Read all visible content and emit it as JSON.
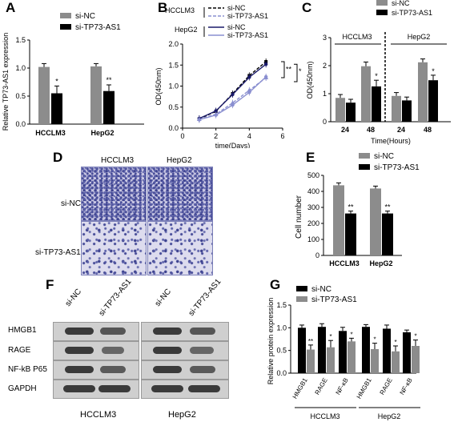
{
  "panels": {
    "A": "A",
    "B": "B",
    "C": "C",
    "D": "D",
    "E": "E",
    "F": "F",
    "G": "G"
  },
  "colors": {
    "si_nc": "#8c8c8c",
    "si_tp73": "#000000",
    "tp73_line": "#8a8fd0",
    "hepg2_line": "#1a1a6a"
  },
  "chart_data": [
    {
      "panel": "A",
      "type": "bar",
      "categories": [
        "HCCLM3",
        "HepG2"
      ],
      "series": [
        {
          "name": "si-NC",
          "values": [
            1.02,
            1.03
          ],
          "errors": [
            0.06,
            0.05
          ]
        },
        {
          "name": "si-TP73-AS1",
          "values": [
            0.55,
            0.59
          ],
          "errors": [
            0.13,
            0.11
          ]
        }
      ],
      "ylabel": "Relative TP73-AS1 expression",
      "ylim": [
        0,
        1.5
      ],
      "yticks": [
        "0.0",
        "0.5",
        "1.0",
        "1.5"
      ],
      "significance": [
        "*",
        "**"
      ]
    },
    {
      "panel": "B",
      "type": "line",
      "x": [
        1,
        2,
        3,
        4,
        5
      ],
      "xticks": [
        "0",
        "2",
        "4",
        "6"
      ],
      "xlim": [
        0,
        6
      ],
      "ylim": [
        0.0,
        2.0
      ],
      "yticks": [
        "0.0",
        "0.5",
        "1.0",
        "1.5",
        "2.0"
      ],
      "xlabel": "time(Days)",
      "ylabel": "OD(450nm)",
      "legend_groups": [
        "HCCLM3",
        "HepG2"
      ],
      "series": [
        {
          "name": "si-NC",
          "group": "HCCLM3",
          "values": [
            0.22,
            0.4,
            0.82,
            1.25,
            1.58
          ]
        },
        {
          "name": "si-TP73-AS1",
          "group": "HCCLM3",
          "values": [
            0.21,
            0.33,
            0.6,
            0.9,
            1.2
          ]
        },
        {
          "name": "si-NC",
          "group": "HepG2",
          "values": [
            0.23,
            0.41,
            0.8,
            1.21,
            1.52
          ]
        },
        {
          "name": "si-TP73-AS1",
          "group": "HepG2",
          "values": [
            0.2,
            0.31,
            0.55,
            0.85,
            1.22
          ]
        }
      ],
      "significance": [
        "**",
        "*"
      ]
    },
    {
      "panel": "C",
      "type": "bar",
      "groups": [
        "HCCLM3",
        "HepG2"
      ],
      "categories": [
        "24",
        "48",
        "24",
        "48"
      ],
      "series": [
        {
          "name": "si-NC",
          "values": [
            0.85,
            1.98,
            0.92,
            2.12
          ],
          "errors": [
            0.12,
            0.15,
            0.12,
            0.12
          ]
        },
        {
          "name": "si-TP73-AS1",
          "values": [
            0.68,
            1.26,
            0.76,
            1.48
          ],
          "errors": [
            0.12,
            0.22,
            0.12,
            0.18
          ]
        }
      ],
      "ylabel": "OD(450nm)",
      "xlabel": "Time(Hours)",
      "ylim": [
        0,
        3
      ],
      "yticks": [
        "0",
        "1",
        "2",
        "3"
      ],
      "significance": [
        "",
        "*",
        "",
        "*"
      ]
    },
    {
      "panel": "E",
      "type": "bar",
      "categories": [
        "HCCLM3",
        "HepG2"
      ],
      "series": [
        {
          "name": "si-NC",
          "values": [
            438,
            418
          ],
          "errors": [
            15,
            15
          ]
        },
        {
          "name": "si-TP73-AS1",
          "values": [
            262,
            262
          ],
          "errors": [
            15,
            15
          ]
        }
      ],
      "ylabel": "Cell number",
      "ylim": [
        0,
        500
      ],
      "yticks": [
        "0",
        "100",
        "200",
        "300",
        "400",
        "500"
      ],
      "significance": [
        "**",
        "**"
      ]
    },
    {
      "panel": "G",
      "type": "bar",
      "categories": [
        "HMGB1",
        "RAGE",
        "NF-κB",
        "HMGB1",
        "RAGE",
        "NF-κB"
      ],
      "groups": [
        "HCCLM3",
        "HepG2"
      ],
      "series": [
        {
          "name": "si-NC",
          "values": [
            1.0,
            1.02,
            0.93,
            1.02,
            0.98,
            0.9
          ],
          "errors": [
            0.06,
            0.07,
            0.08,
            0.05,
            0.08,
            0.05
          ]
        },
        {
          "name": "si-TP73-AS1",
          "values": [
            0.52,
            0.57,
            0.7,
            0.53,
            0.48,
            0.6
          ],
          "errors": [
            0.1,
            0.15,
            0.07,
            0.13,
            0.12,
            0.13
          ]
        }
      ],
      "ylabel": "Relative protein expression",
      "ylim": [
        0,
        1.5
      ],
      "yticks": [
        "0.0",
        "0.5",
        "1.0",
        "1.5"
      ],
      "significance": [
        "**",
        "*",
        "*",
        "*",
        "*",
        "*"
      ]
    }
  ],
  "panel_D": {
    "columns": [
      "HCCLM3",
      "HepG2"
    ],
    "rows": [
      "si-NC",
      "si-TP73-AS1"
    ]
  },
  "panel_F": {
    "lanes": [
      "si-NC",
      "si-TP73-AS1",
      "si-NC",
      "si-TP73-AS1"
    ],
    "proteins": [
      "HMGB1",
      "RAGE",
      "NF-kB P65",
      "GAPDH"
    ],
    "cell_lines": [
      "HCCLM3",
      "HepG2"
    ]
  }
}
